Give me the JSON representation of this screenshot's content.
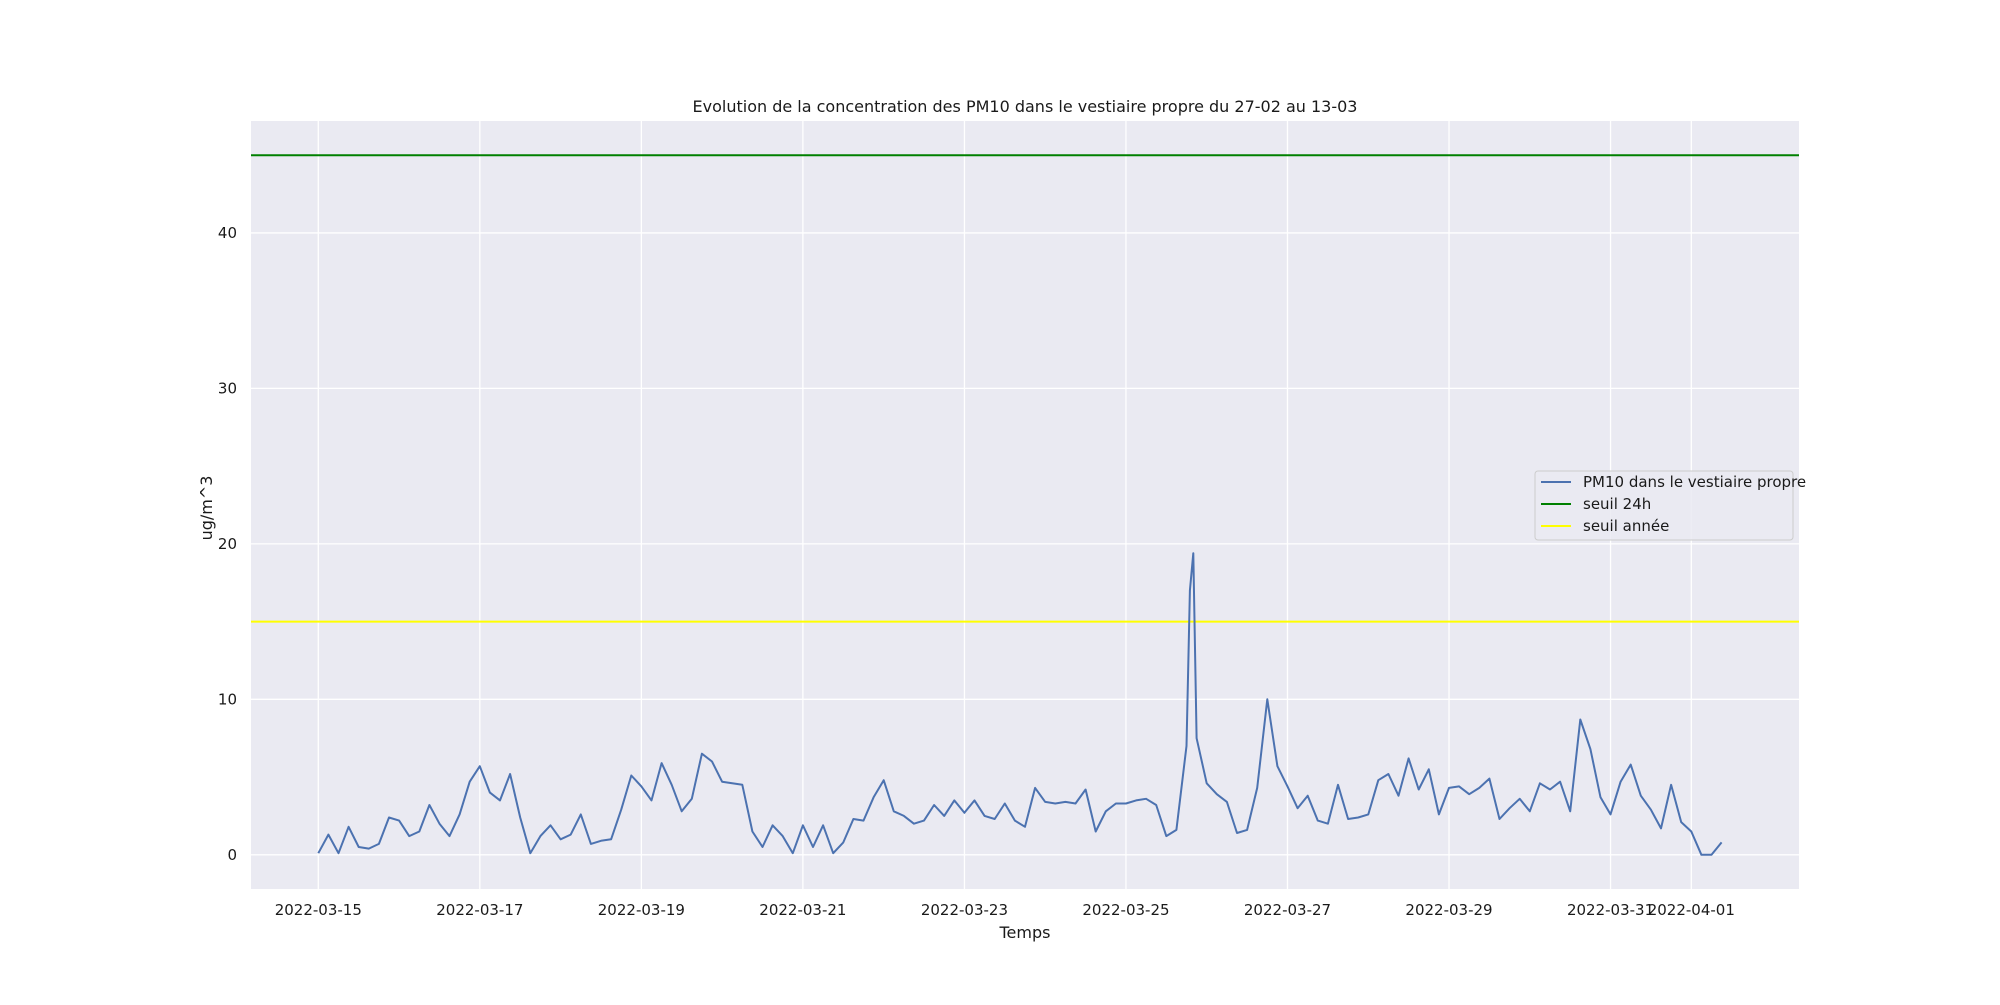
{
  "chart_data": {
    "type": "line",
    "title": "Evolution de la concentration des PM10 dans le vestiaire propre du 27-02 au 13-03",
    "xlabel": "Temps",
    "ylabel": "ug/m^3",
    "xlim": [
      "2022-03-14T04:00",
      "2022-04-02T08:00"
    ],
    "ylim": [
      -2.2,
      47.2
    ],
    "grid": true,
    "legend_position": "center-right",
    "x_tick_labels": [
      "2022-03-15",
      "2022-03-17",
      "2022-03-19",
      "2022-03-21",
      "2022-03-23",
      "2022-03-25",
      "2022-03-27",
      "2022-03-29",
      "2022-03-31",
      "2022-04-01"
    ],
    "y_tick_labels": [
      0,
      10,
      20,
      30,
      40
    ],
    "colors": {
      "plot_background": "#eaeaf2",
      "grid": "#ffffff",
      "pm10": "#4c72b0",
      "seuil_24h": "#008000",
      "seuil_annee": "#ffff00"
    },
    "horizontal_lines": [
      {
        "name": "seuil 24h",
        "y": 45,
        "color": "#008000"
      },
      {
        "name": "seuil année",
        "y": 15,
        "color": "#ffff00"
      }
    ],
    "series": [
      {
        "name": "PM10 dans le vestiaire propre",
        "color": "#4c72b0",
        "x": [
          "2022-03-15T00:00",
          "2022-03-15T03:00",
          "2022-03-15T06:00",
          "2022-03-15T09:00",
          "2022-03-15T12:00",
          "2022-03-15T15:00",
          "2022-03-15T18:00",
          "2022-03-15T21:00",
          "2022-03-16T00:00",
          "2022-03-16T03:00",
          "2022-03-16T06:00",
          "2022-03-16T09:00",
          "2022-03-16T12:00",
          "2022-03-16T15:00",
          "2022-03-16T18:00",
          "2022-03-16T21:00",
          "2022-03-17T00:00",
          "2022-03-17T03:00",
          "2022-03-17T06:00",
          "2022-03-17T09:00",
          "2022-03-17T12:00",
          "2022-03-17T15:00",
          "2022-03-17T18:00",
          "2022-03-17T21:00",
          "2022-03-18T00:00",
          "2022-03-18T03:00",
          "2022-03-18T06:00",
          "2022-03-18T09:00",
          "2022-03-18T12:00",
          "2022-03-18T15:00",
          "2022-03-18T18:00",
          "2022-03-18T21:00",
          "2022-03-19T00:00",
          "2022-03-19T03:00",
          "2022-03-19T06:00",
          "2022-03-19T09:00",
          "2022-03-19T12:00",
          "2022-03-19T15:00",
          "2022-03-19T18:00",
          "2022-03-19T21:00",
          "2022-03-20T00:00",
          "2022-03-20T03:00",
          "2022-03-20T06:00",
          "2022-03-20T09:00",
          "2022-03-20T12:00",
          "2022-03-20T15:00",
          "2022-03-20T18:00",
          "2022-03-20T21:00",
          "2022-03-21T00:00",
          "2022-03-21T03:00",
          "2022-03-21T06:00",
          "2022-03-21T09:00",
          "2022-03-21T12:00",
          "2022-03-21T15:00",
          "2022-03-21T18:00",
          "2022-03-21T21:00",
          "2022-03-22T00:00",
          "2022-03-22T03:00",
          "2022-03-22T06:00",
          "2022-03-22T09:00",
          "2022-03-22T12:00",
          "2022-03-22T15:00",
          "2022-03-22T18:00",
          "2022-03-22T21:00",
          "2022-03-23T00:00",
          "2022-03-23T03:00",
          "2022-03-23T06:00",
          "2022-03-23T09:00",
          "2022-03-23T12:00",
          "2022-03-23T15:00",
          "2022-03-23T18:00",
          "2022-03-23T21:00",
          "2022-03-24T00:00",
          "2022-03-24T03:00",
          "2022-03-24T06:00",
          "2022-03-24T09:00",
          "2022-03-24T12:00",
          "2022-03-24T15:00",
          "2022-03-24T18:00",
          "2022-03-24T21:00",
          "2022-03-25T00:00",
          "2022-03-25T03:00",
          "2022-03-25T06:00",
          "2022-03-25T09:00",
          "2022-03-25T12:00",
          "2022-03-25T15:00",
          "2022-03-25T18:00",
          "2022-03-25T19:00",
          "2022-03-25T20:00",
          "2022-03-25T21:00",
          "2022-03-26T00:00",
          "2022-03-26T03:00",
          "2022-03-26T06:00",
          "2022-03-26T09:00",
          "2022-03-26T12:00",
          "2022-03-26T15:00",
          "2022-03-26T18:00",
          "2022-03-26T21:00",
          "2022-03-27T00:00",
          "2022-03-27T03:00",
          "2022-03-27T06:00",
          "2022-03-27T09:00",
          "2022-03-27T12:00",
          "2022-03-27T15:00",
          "2022-03-27T18:00",
          "2022-03-27T21:00",
          "2022-03-28T00:00",
          "2022-03-28T03:00",
          "2022-03-28T06:00",
          "2022-03-28T09:00",
          "2022-03-28T12:00",
          "2022-03-28T15:00",
          "2022-03-28T18:00",
          "2022-03-28T21:00",
          "2022-03-29T00:00",
          "2022-03-29T03:00",
          "2022-03-29T06:00",
          "2022-03-29T09:00",
          "2022-03-29T12:00",
          "2022-03-29T15:00",
          "2022-03-29T18:00",
          "2022-03-29T21:00",
          "2022-03-30T00:00",
          "2022-03-30T03:00",
          "2022-03-30T06:00",
          "2022-03-30T09:00",
          "2022-03-30T12:00",
          "2022-03-30T15:00",
          "2022-03-30T18:00",
          "2022-03-30T21:00",
          "2022-03-31T00:00",
          "2022-03-31T03:00",
          "2022-03-31T06:00",
          "2022-03-31T09:00",
          "2022-03-31T12:00",
          "2022-03-31T15:00",
          "2022-03-31T18:00",
          "2022-03-31T21:00",
          "2022-04-01T00:00",
          "2022-04-01T03:00",
          "2022-04-01T06:00",
          "2022-04-01T09:00"
        ],
        "values": [
          0.1,
          1.3,
          0.1,
          1.8,
          0.5,
          0.4,
          0.7,
          2.4,
          2.2,
          1.2,
          1.5,
          3.2,
          2.0,
          1.2,
          2.6,
          4.7,
          5.7,
          4.0,
          3.5,
          5.2,
          2.4,
          0.1,
          1.2,
          1.9,
          1.0,
          1.3,
          2.6,
          0.7,
          0.9,
          1.0,
          2.9,
          5.1,
          4.4,
          3.5,
          5.9,
          4.5,
          2.8,
          3.6,
          6.5,
          6.0,
          4.7,
          4.6,
          4.5,
          1.5,
          0.5,
          1.9,
          1.2,
          0.1,
          1.9,
          0.5,
          1.9,
          0.1,
          0.8,
          2.3,
          2.2,
          3.7,
          4.8,
          2.8,
          2.5,
          2.0,
          2.2,
          3.2,
          2.5,
          3.5,
          2.7,
          3.5,
          2.5,
          2.3,
          3.3,
          2.2,
          1.8,
          4.3,
          3.4,
          3.3,
          3.4,
          3.3,
          4.2,
          1.5,
          2.8,
          3.3,
          3.3,
          3.5,
          3.6,
          3.2,
          1.2,
          1.6,
          7.0,
          17.0,
          19.4,
          7.5,
          4.6,
          3.9,
          3.4,
          1.4,
          1.6,
          4.3,
          10.0,
          5.7,
          4.4,
          3.0,
          3.8,
          2.2,
          2.0,
          4.5,
          2.3,
          2.4,
          2.6,
          4.8,
          5.2,
          3.8,
          6.2,
          4.2,
          5.5,
          2.6,
          4.3,
          4.4,
          3.9,
          4.3,
          4.9,
          2.3,
          3.0,
          3.6,
          2.8,
          4.6,
          4.2,
          4.7,
          2.8,
          8.7,
          6.8,
          3.7,
          2.6,
          4.7,
          5.8,
          3.8,
          2.9,
          1.7,
          4.5,
          2.1,
          1.5,
          0.0,
          0.0,
          0.8
        ]
      }
    ]
  },
  "legend": {
    "entries": [
      {
        "label": "PM10 dans le vestiaire propre",
        "color": "#4c72b0"
      },
      {
        "label": "seuil 24h",
        "color": "#008000"
      },
      {
        "label": "seuil année",
        "color": "#ffff00"
      }
    ]
  }
}
